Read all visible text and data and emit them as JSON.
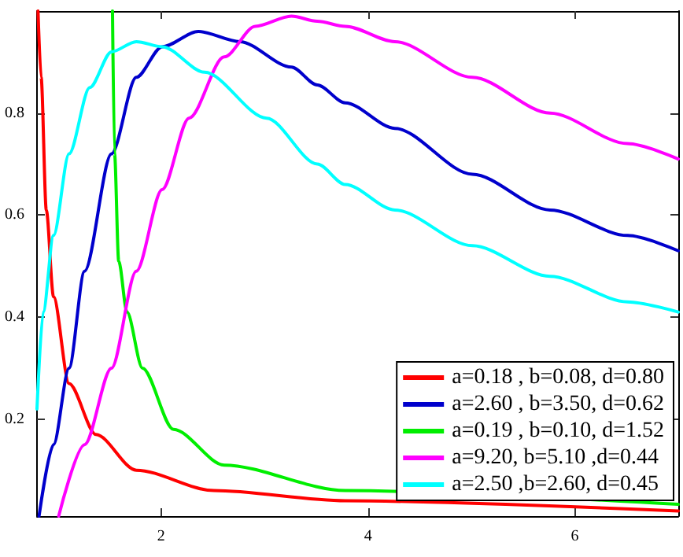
{
  "chart_data": {
    "type": "line",
    "xlim": [
      0.8,
      7
    ],
    "ylim": [
      0.01,
      1
    ],
    "xticks": [
      2,
      4,
      6
    ],
    "yticks": [
      0.2,
      0.4,
      0.6,
      0.8
    ],
    "grid": false,
    "legend": "bottom right",
    "marker": "none",
    "line_style": "solid",
    "series": [
      {
        "name": "a=0.18 , b=0.08, d=0.80",
        "color": "#ff0000",
        "x": [
          0.81,
          0.84,
          0.89,
          0.96,
          1.11,
          1.37,
          1.76,
          2.51,
          3.78,
          7.0
        ],
        "values": [
          1.0,
          0.87,
          0.61,
          0.44,
          0.27,
          0.17,
          0.1,
          0.06,
          0.04,
          0.02
        ]
      },
      {
        "name": "a=2.60 , b=3.50, d=0.62",
        "color": "#0000cc",
        "x": [
          0.82,
          0.96,
          1.11,
          1.26,
          1.52,
          1.76,
          2.01,
          2.36,
          2.76,
          3.26,
          3.51,
          3.78,
          4.26,
          5.01,
          5.76,
          6.51,
          7.0
        ],
        "values": [
          0.01,
          0.15,
          0.3,
          0.49,
          0.72,
          0.87,
          0.93,
          0.96,
          0.94,
          0.89,
          0.855,
          0.82,
          0.77,
          0.68,
          0.61,
          0.56,
          0.53
        ]
      },
      {
        "name": "a=0.19 , b=0.10, d=1.52",
        "color": "#00ee00",
        "x": [
          1.53,
          1.55,
          1.59,
          1.67,
          1.82,
          2.12,
          2.61,
          3.78,
          7.0
        ],
        "values": [
          1.0,
          0.72,
          0.51,
          0.41,
          0.3,
          0.18,
          0.11,
          0.06,
          0.033
        ]
      },
      {
        "name": "a=9.20, b=5.10 ,d=0.44",
        "color": "#ff00ff",
        "x": [
          1.01,
          1.26,
          1.52,
          1.76,
          2.01,
          2.27,
          2.61,
          2.91,
          3.26,
          3.51,
          3.78,
          4.26,
          5.01,
          5.76,
          6.51,
          7.0
        ],
        "values": [
          0.01,
          0.15,
          0.3,
          0.49,
          0.65,
          0.79,
          0.91,
          0.97,
          0.99,
          0.98,
          0.97,
          0.94,
          0.87,
          0.8,
          0.74,
          0.71
        ]
      },
      {
        "name": "a=2.50 ,b=2.60, d=0.45",
        "color": "#00ffff",
        "x": [
          0.8,
          0.86,
          0.96,
          1.11,
          1.31,
          1.52,
          1.76,
          2.01,
          2.42,
          3.02,
          3.51,
          3.78,
          4.26,
          5.01,
          5.76,
          6.51,
          7.0
        ],
        "values": [
          0.22,
          0.41,
          0.56,
          0.72,
          0.85,
          0.92,
          0.94,
          0.93,
          0.88,
          0.79,
          0.7,
          0.66,
          0.61,
          0.54,
          0.48,
          0.43,
          0.41
        ]
      }
    ]
  }
}
